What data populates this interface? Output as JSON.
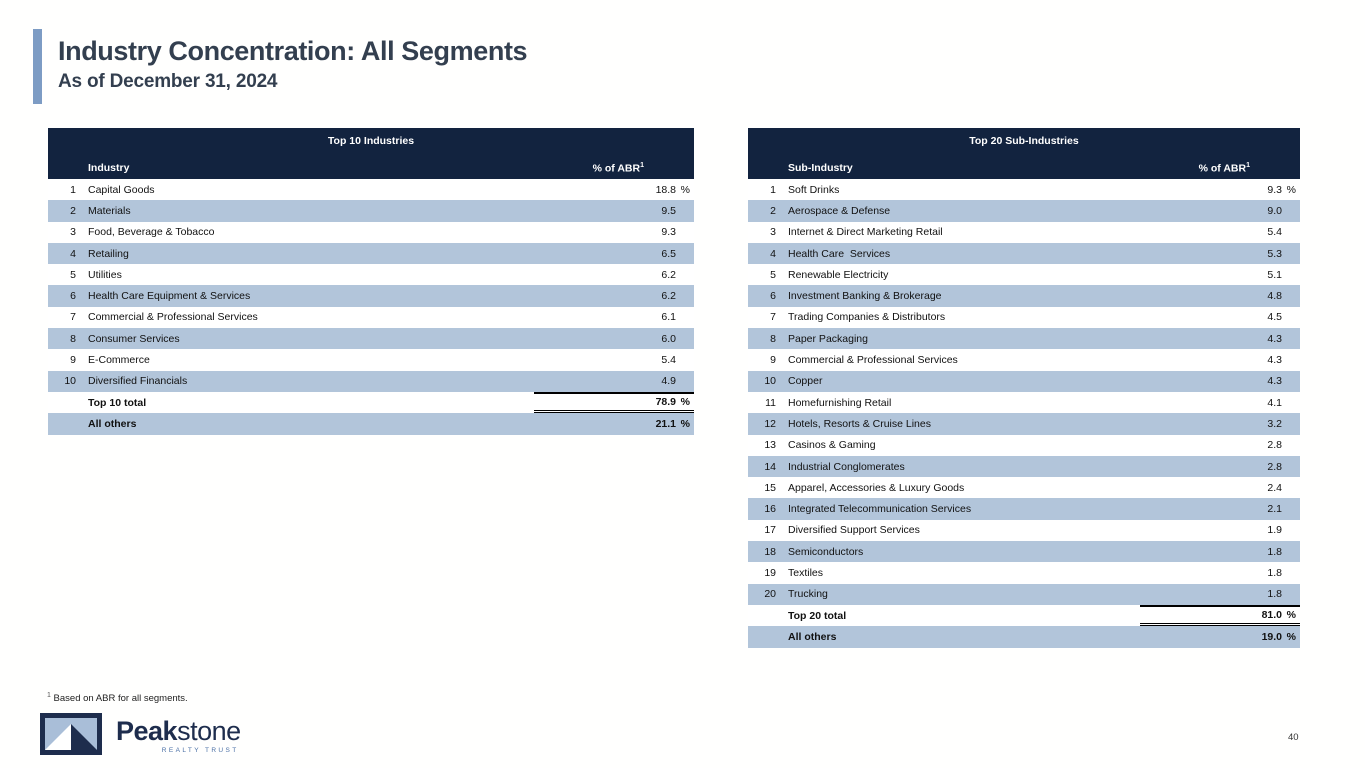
{
  "slide": {
    "title": "Industry Concentration: All Segments",
    "subtitle": "As of December 31, 2024",
    "footnote_sup": "1",
    "footnote_text": "Based on ABR for all segments.",
    "page_number": "40"
  },
  "logo": {
    "brand_bold": "Peak",
    "brand_light": "stone",
    "tagline": "REALTY TRUST"
  },
  "colors": {
    "header_navy": "#12233f",
    "row_blue": "#b2c5da",
    "accent_bar_blue": "#7d9cc4",
    "title_slate": "#333f4f",
    "logo_light_blue": "#a9bed8",
    "logo_navy": "#1e2d4d",
    "tagline_blue": "#4a6fa5"
  },
  "tables": [
    {
      "title": "Top 10 Industries",
      "col_name": "Industry",
      "col_value": "% of ABR",
      "col_value_sup": "1",
      "rows": [
        {
          "rank": "1",
          "name": "Capital Goods",
          "value": "18.8",
          "suffix": "%"
        },
        {
          "rank": "2",
          "name": "Materials",
          "value": "9.5",
          "suffix": ""
        },
        {
          "rank": "3",
          "name": "Food, Beverage & Tobacco",
          "value": "9.3",
          "suffix": ""
        },
        {
          "rank": "4",
          "name": "Retailing",
          "value": "6.5",
          "suffix": ""
        },
        {
          "rank": "5",
          "name": "Utilities",
          "value": "6.2",
          "suffix": ""
        },
        {
          "rank": "6",
          "name": "Health Care Equipment & Services",
          "value": "6.2",
          "suffix": ""
        },
        {
          "rank": "7",
          "name": "Commercial & Professional Services",
          "value": "6.1",
          "suffix": ""
        },
        {
          "rank": "8",
          "name": "Consumer Services",
          "value": "6.0",
          "suffix": ""
        },
        {
          "rank": "9",
          "name": "E-Commerce",
          "value": "5.4",
          "suffix": ""
        },
        {
          "rank": "10",
          "name": "Diversified Financials",
          "value": "4.9",
          "suffix": ""
        }
      ],
      "totals": [
        {
          "label": "Top 10 total",
          "value": "78.9",
          "suffix": "%"
        },
        {
          "label": "All others",
          "value": "21.1",
          "suffix": "%"
        }
      ]
    },
    {
      "title": "Top 20 Sub-Industries",
      "col_name": "Sub-Industry",
      "col_value": "% of ABR",
      "col_value_sup": "1",
      "rows": [
        {
          "rank": "1",
          "name": "Soft Drinks",
          "value": "9.3",
          "suffix": "%"
        },
        {
          "rank": "2",
          "name": "Aerospace & Defense",
          "value": "9.0",
          "suffix": ""
        },
        {
          "rank": "3",
          "name": "Internet & Direct Marketing Retail",
          "value": "5.4",
          "suffix": ""
        },
        {
          "rank": "4",
          "name": "Health Care  Services",
          "value": "5.3",
          "suffix": ""
        },
        {
          "rank": "5",
          "name": "Renewable Electricity",
          "value": "5.1",
          "suffix": ""
        },
        {
          "rank": "6",
          "name": "Investment Banking & Brokerage",
          "value": "4.8",
          "suffix": ""
        },
        {
          "rank": "7",
          "name": "Trading Companies & Distributors",
          "value": "4.5",
          "suffix": ""
        },
        {
          "rank": "8",
          "name": "Paper Packaging",
          "value": "4.3",
          "suffix": ""
        },
        {
          "rank": "9",
          "name": "Commercial & Professional Services",
          "value": "4.3",
          "suffix": ""
        },
        {
          "rank": "10",
          "name": "Copper",
          "value": "4.3",
          "suffix": ""
        },
        {
          "rank": "11",
          "name": "Homefurnishing Retail",
          "value": "4.1",
          "suffix": ""
        },
        {
          "rank": "12",
          "name": "Hotels, Resorts & Cruise Lines",
          "value": "3.2",
          "suffix": ""
        },
        {
          "rank": "13",
          "name": "Casinos & Gaming",
          "value": "2.8",
          "suffix": ""
        },
        {
          "rank": "14",
          "name": "Industrial Conglomerates",
          "value": "2.8",
          "suffix": ""
        },
        {
          "rank": "15",
          "name": "Apparel, Accessories & Luxury Goods",
          "value": "2.4",
          "suffix": ""
        },
        {
          "rank": "16",
          "name": "Integrated Telecommunication Services",
          "value": "2.1",
          "suffix": ""
        },
        {
          "rank": "17",
          "name": "Diversified Support Services",
          "value": "1.9",
          "suffix": ""
        },
        {
          "rank": "18",
          "name": "Semiconductors",
          "value": "1.8",
          "suffix": ""
        },
        {
          "rank": "19",
          "name": "Textiles",
          "value": "1.8",
          "suffix": ""
        },
        {
          "rank": "20",
          "name": "Trucking",
          "value": "1.8",
          "suffix": ""
        }
      ],
      "totals": [
        {
          "label": "Top 20 total",
          "value": "81.0",
          "suffix": "%"
        },
        {
          "label": "All others",
          "value": "19.0",
          "suffix": "%"
        }
      ]
    }
  ]
}
